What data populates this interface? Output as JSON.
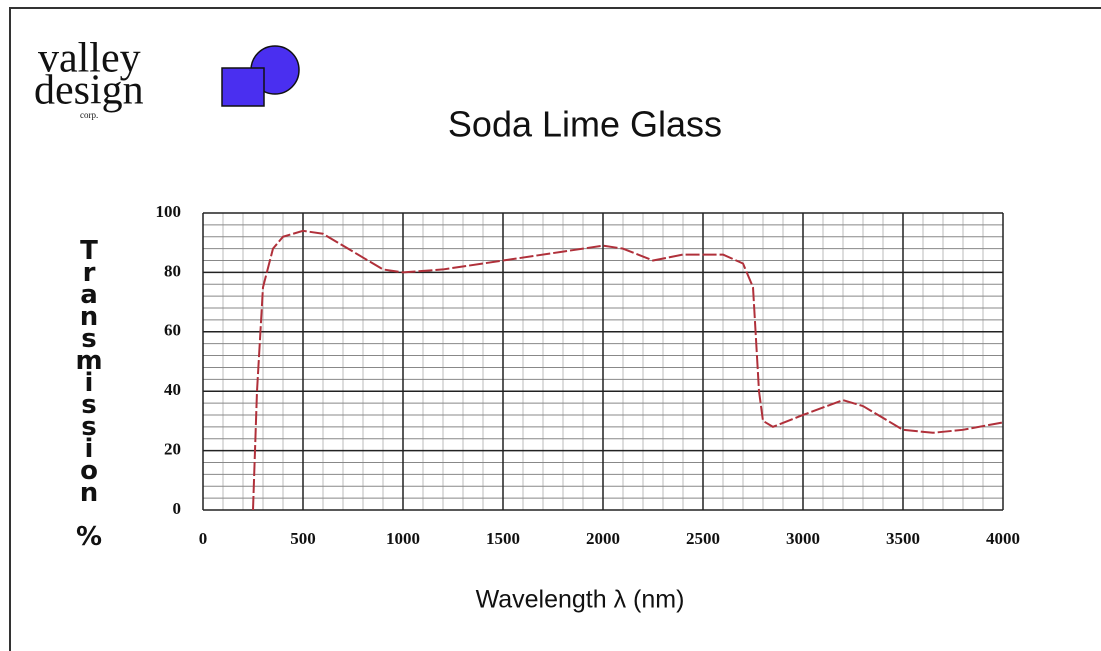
{
  "logo": {
    "line1": "valley",
    "line2": "design",
    "line3": "corp."
  },
  "chart_data": {
    "type": "line",
    "title": "Soda Lime Glass",
    "xlabel": "Wavelength λ (nm)",
    "ylabel": "Transmission %",
    "x": [
      250,
      270,
      300,
      350,
      400,
      500,
      600,
      700,
      800,
      900,
      1000,
      1200,
      1500,
      1800,
      2000,
      2100,
      2250,
      2400,
      2600,
      2700,
      2750,
      2780,
      2800,
      2850,
      3000,
      3200,
      3300,
      3500,
      3650,
      3800,
      4000
    ],
    "series": [
      {
        "name": "Soda Lime Glass",
        "color": "#b0303a",
        "values": [
          0,
          40,
          75,
          88,
          92,
          94,
          93,
          89,
          85,
          81,
          80,
          81,
          84,
          87,
          89,
          88,
          84,
          86,
          86,
          83,
          75,
          40,
          30,
          28,
          32,
          37,
          35,
          27,
          26,
          27,
          29.5
        ]
      }
    ],
    "xlim": [
      0,
      4000
    ],
    "xticks": [
      0,
      500,
      1000,
      1500,
      2000,
      2500,
      3000,
      3500,
      4000
    ],
    "xminorticks": [
      100,
      200,
      300,
      400,
      600,
      700,
      800,
      900,
      1100,
      1200,
      1300,
      1400,
      1600,
      1700,
      1800,
      1900,
      2100,
      2200,
      2300,
      2400,
      2600,
      2700,
      2800,
      2900,
      3100,
      3200,
      3300,
      3400,
      3600,
      3700,
      3800,
      3900
    ],
    "ylim": [
      0,
      100
    ],
    "yticks": [
      0,
      20,
      40,
      60,
      80,
      100
    ],
    "yminorticks": [
      4,
      8,
      12,
      16,
      24,
      28,
      32,
      36,
      44,
      48,
      52,
      56,
      64,
      68,
      72,
      76,
      84,
      88,
      92,
      96
    ],
    "grid": true
  }
}
